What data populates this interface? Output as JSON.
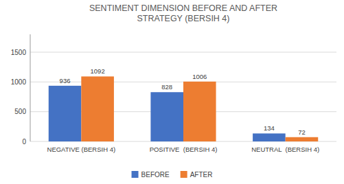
{
  "chart_data": {
    "type": "bar",
    "title": "SENTIMENT DIMENSION BEFORE AND AFTER\nSTRATEGY (BERSIH 4)",
    "categories": [
      "NEGATIVE (BERSIH 4)",
      "POSITIVE  (BERSIH 4)",
      "NEUTRAL  (BERSIH 4)"
    ],
    "series": [
      {
        "name": "BEFORE",
        "color": "#4472C4",
        "values": [
          936,
          828,
          134
        ]
      },
      {
        "name": "AFTER",
        "color": "#ED7D31",
        "values": [
          1092,
          1006,
          72
        ]
      }
    ],
    "ylim": [
      0,
      1800
    ],
    "yticks": [
      0,
      500,
      1000,
      1500
    ],
    "grid": true,
    "legend": "bottom",
    "data_labels": true
  }
}
